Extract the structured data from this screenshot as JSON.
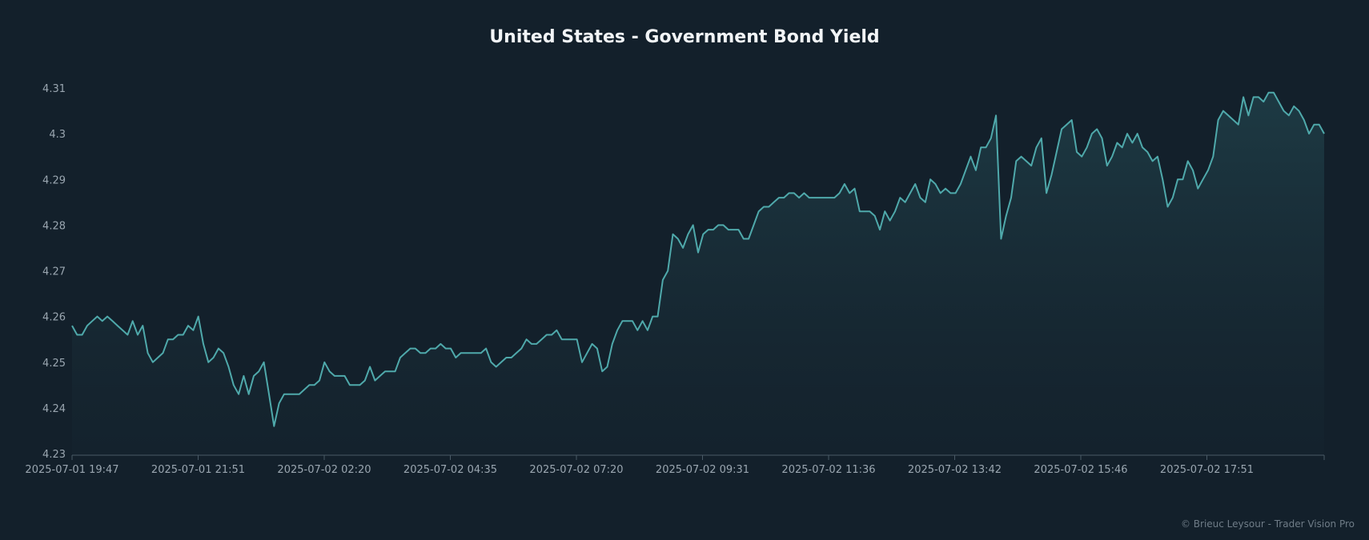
{
  "chart_data": {
    "type": "area",
    "title": "United States - Government Bond Yield",
    "xlabel": "",
    "ylabel": "",
    "ylim": [
      4.23,
      4.31
    ],
    "yticks": [
      "4.23",
      "4.24",
      "4.25",
      "4.26",
      "4.27",
      "4.28",
      "4.29",
      "4.3",
      "4.31"
    ],
    "xtick_labels": [
      "2025-07-01 19:47",
      "2025-07-01 21:51",
      "2025-07-02 02:20",
      "2025-07-02 04:35",
      "2025-07-02 07:20",
      "2025-07-02 09:31",
      "2025-07-02 11:36",
      "2025-07-02 13:42",
      "2025-07-02 15:46",
      "2025-07-02 17:51"
    ],
    "grid": false,
    "line_color": "#4fa9ab",
    "series": [
      {
        "name": "Yield",
        "values": [
          4.258,
          4.256,
          4.256,
          4.258,
          4.259,
          4.26,
          4.259,
          4.26,
          4.259,
          4.258,
          4.257,
          4.256,
          4.259,
          4.256,
          4.258,
          4.252,
          4.25,
          4.251,
          4.252,
          4.255,
          4.255,
          4.256,
          4.256,
          4.258,
          4.257,
          4.26,
          4.254,
          4.25,
          4.251,
          4.253,
          4.252,
          4.249,
          4.245,
          4.243,
          4.247,
          4.243,
          4.247,
          4.248,
          4.25,
          4.243,
          4.236,
          4.241,
          4.243,
          4.243,
          4.243,
          4.243,
          4.244,
          4.245,
          4.245,
          4.246,
          4.25,
          4.248,
          4.247,
          4.247,
          4.247,
          4.245,
          4.245,
          4.245,
          4.246,
          4.249,
          4.246,
          4.247,
          4.248,
          4.248,
          4.248,
          4.251,
          4.252,
          4.253,
          4.253,
          4.252,
          4.252,
          4.253,
          4.253,
          4.254,
          4.253,
          4.253,
          4.251,
          4.252,
          4.252,
          4.252,
          4.252,
          4.252,
          4.253,
          4.25,
          4.249,
          4.25,
          4.251,
          4.251,
          4.252,
          4.253,
          4.255,
          4.254,
          4.254,
          4.255,
          4.256,
          4.256,
          4.257,
          4.255,
          4.255,
          4.255,
          4.255,
          4.25,
          4.252,
          4.254,
          4.253,
          4.248,
          4.249,
          4.254,
          4.257,
          4.259,
          4.259,
          4.259,
          4.257,
          4.259,
          4.257,
          4.26,
          4.26,
          4.268,
          4.27,
          4.278,
          4.277,
          4.275,
          4.278,
          4.28,
          4.274,
          4.278,
          4.279,
          4.279,
          4.28,
          4.28,
          4.279,
          4.279,
          4.279,
          4.277,
          4.277,
          4.28,
          4.283,
          4.284,
          4.284,
          4.285,
          4.286,
          4.286,
          4.287,
          4.287,
          4.286,
          4.287,
          4.286,
          4.286,
          4.286,
          4.286,
          4.286,
          4.286,
          4.287,
          4.289,
          4.287,
          4.288,
          4.283,
          4.283,
          4.283,
          4.282,
          4.279,
          4.283,
          4.281,
          4.283,
          4.286,
          4.285,
          4.287,
          4.289,
          4.286,
          4.285,
          4.29,
          4.289,
          4.287,
          4.288,
          4.287,
          4.287,
          4.289,
          4.292,
          4.295,
          4.292,
          4.297,
          4.297,
          4.299,
          4.304,
          4.277,
          4.282,
          4.286,
          4.294,
          4.295,
          4.294,
          4.293,
          4.297,
          4.299,
          4.287,
          4.291,
          4.296,
          4.301,
          4.302,
          4.303,
          4.296,
          4.295,
          4.297,
          4.3,
          4.301,
          4.299,
          4.293,
          4.295,
          4.298,
          4.297,
          4.3,
          4.298,
          4.3,
          4.297,
          4.296,
          4.294,
          4.295,
          4.29,
          4.284,
          4.286,
          4.29,
          4.29,
          4.294,
          4.292,
          4.288,
          4.29,
          4.292,
          4.295,
          4.303,
          4.305,
          4.304,
          4.303,
          4.302,
          4.308,
          4.304,
          4.308,
          4.308,
          4.307,
          4.309,
          4.309,
          4.307,
          4.305,
          4.304,
          4.306,
          4.305,
          4.303,
          4.3,
          4.302,
          4.302,
          4.3
        ]
      }
    ]
  },
  "footer": {
    "credit": "© Brieuc Leysour - Trader Vision Pro"
  }
}
